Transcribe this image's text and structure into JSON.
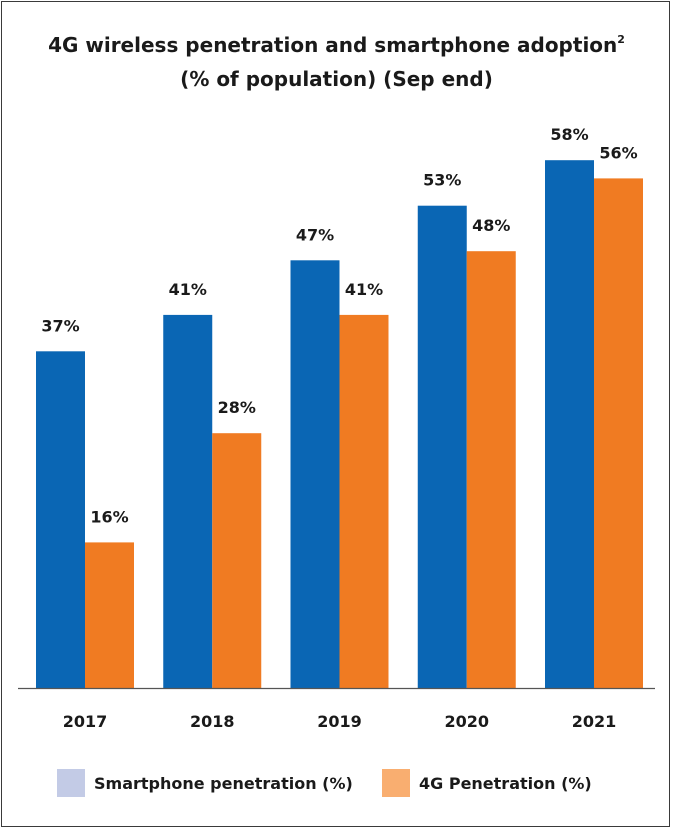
{
  "chart_data": {
    "type": "bar",
    "title": "4G wireless penetration and smartphone adoption",
    "title_superscript": "2",
    "subtitle": "(% of population) (Sep end)",
    "categories": [
      "2017",
      "2018",
      "2019",
      "2020",
      "2021"
    ],
    "series": [
      {
        "name": "Smartphone penetration (%)",
        "values": [
          37,
          41,
          47,
          53,
          58
        ],
        "labels": [
          "37%",
          "41%",
          "47%",
          "53%",
          "58%"
        ],
        "bar_color": "#0a66b4",
        "legend_color": "#c3cbe6"
      },
      {
        "name": "4G Penetration (%)",
        "values": [
          16,
          28,
          41,
          48,
          56
        ],
        "labels": [
          "16%",
          "28%",
          "41%",
          "48%",
          "56%"
        ],
        "bar_color": "#f07b22",
        "legend_color": "#f9ae70"
      }
    ],
    "ylim": [
      0,
      60
    ],
    "grid": false,
    "legend_position": "bottom"
  }
}
